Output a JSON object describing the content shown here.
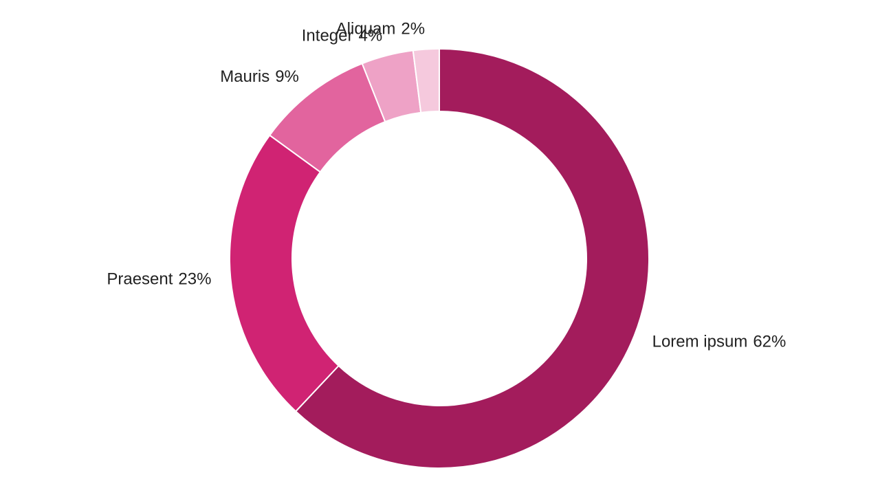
{
  "chart_data": {
    "type": "donut",
    "categories": [
      "Lorem ipsum",
      "Praesent",
      "Mauris",
      "Integer",
      "Aliquam"
    ],
    "values": [
      62,
      23,
      9,
      4,
      2
    ],
    "value_labels": [
      "62%",
      "23%",
      "9%",
      "4%",
      "2%"
    ],
    "colors": [
      "#a31c5c",
      "#d02373",
      "#e2649e",
      "#eea2c6",
      "#f5c9dd"
    ]
  }
}
